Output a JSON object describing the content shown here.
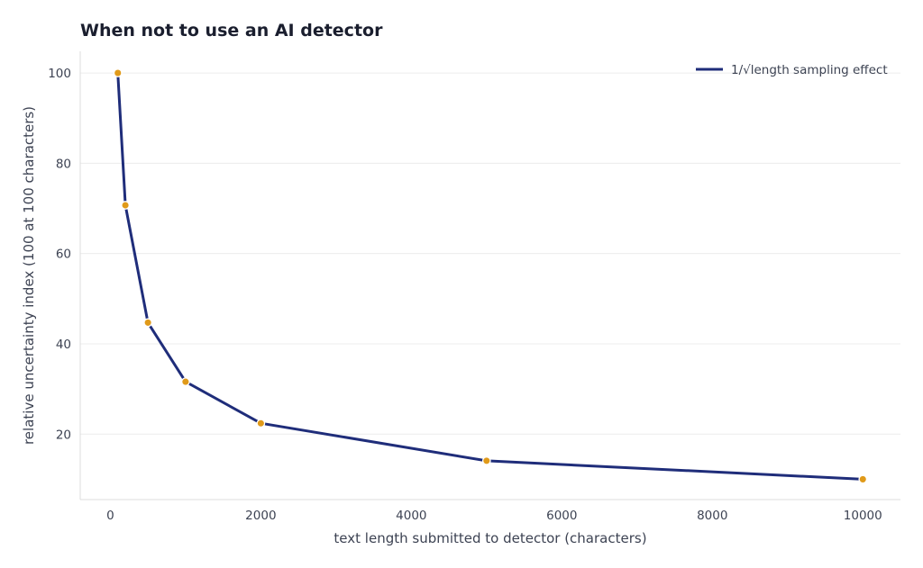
{
  "chart_data": {
    "type": "line",
    "title": "When not to use an AI detector",
    "xlabel": "text length submitted to detector (characters)",
    "ylabel": "relative uncertainty index (100 at 100 characters)",
    "xlim": [
      -400,
      10500
    ],
    "ylim": [
      5.5,
      104.8
    ],
    "xticks": [
      0,
      2000,
      4000,
      6000,
      8000,
      10000
    ],
    "yticks": [
      20,
      40,
      60,
      80,
      100
    ],
    "grid": true,
    "legend_position": "top-right",
    "series": [
      {
        "name": "1/√length sampling effect",
        "color": "#1f2d7a",
        "marker_color": "#e09a1a",
        "x": [
          100,
          200,
          500,
          1000,
          2000,
          5000,
          10000
        ],
        "y": [
          100,
          70.7,
          44.7,
          31.6,
          22.4,
          14.1,
          10.0
        ]
      }
    ]
  }
}
